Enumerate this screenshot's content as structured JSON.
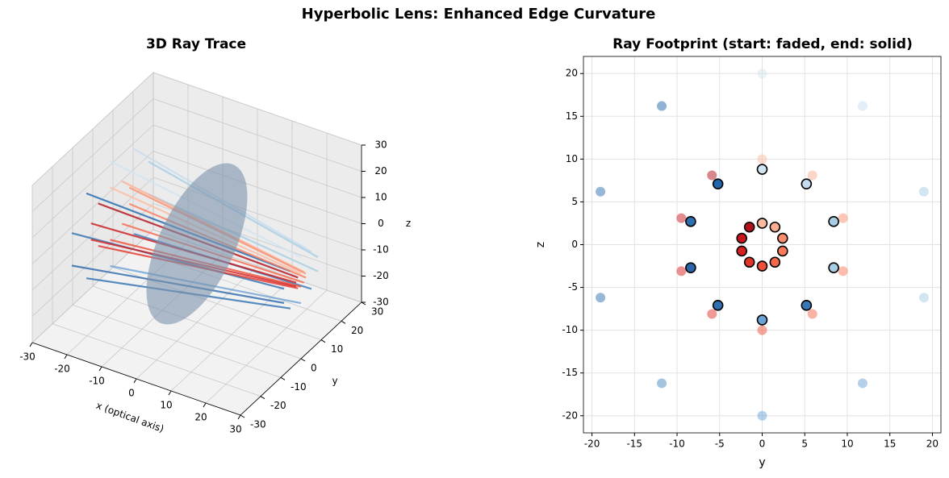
{
  "title": "Hyperbolic Lens: Enhanced Edge Curvature",
  "chart_data": [
    {
      "type": "line3d",
      "title": "3D Ray Trace",
      "x_label": "x (optical axis)",
      "y_label": "y",
      "z_label": "z",
      "xlim": [
        -30,
        30
      ],
      "ylim": [
        -30,
        30
      ],
      "zlim": [
        -30,
        30
      ],
      "xticks": [
        -30,
        -20,
        -10,
        0,
        10,
        20,
        30
      ],
      "yticks": [
        -30,
        -20,
        -10,
        0,
        10,
        20,
        30
      ],
      "zticks": [
        -30,
        -20,
        -10,
        0,
        10,
        20,
        30
      ],
      "x": [
        -25,
        30
      ],
      "lens": {
        "x": 0,
        "radius": 25,
        "color": "#7b93ab"
      },
      "alpha": 0.8,
      "series": [
        {
          "color": "#d1e5f0",
          "y": [
            0,
            0
          ],
          "z": [
            20,
            8.8
          ]
        },
        {
          "color": "#c6dbef",
          "y": [
            11.8,
            5.2
          ],
          "z": [
            16.2,
            7.1
          ]
        },
        {
          "color": "#a6cde3",
          "y": [
            19.0,
            8.4
          ],
          "z": [
            6.2,
            2.7
          ]
        },
        {
          "color": "#a6cde3",
          "y": [
            19.0,
            8.4
          ],
          "z": [
            -6.2,
            -2.7
          ]
        },
        {
          "color": "#3a78b5",
          "y": [
            11.8,
            5.2
          ],
          "z": [
            -16.2,
            -7.1
          ]
        },
        {
          "color": "#6ba3d4",
          "y": [
            0,
            0
          ],
          "z": [
            -20,
            -8.8
          ]
        },
        {
          "color": "#2f6fb0",
          "y": [
            -11.8,
            -5.2
          ],
          "z": [
            -16.2,
            -7.1
          ]
        },
        {
          "color": "#2a67aa",
          "y": [
            -19.0,
            -8.4
          ],
          "z": [
            -6.2,
            -2.7
          ]
        },
        {
          "color": "#2f6fb0",
          "y": [
            -19.0,
            -8.4
          ],
          "z": [
            6.2,
            2.7
          ]
        },
        {
          "color": "#2166ac",
          "y": [
            -11.8,
            -5.2
          ],
          "z": [
            16.2,
            7.1
          ]
        },
        {
          "color": "#fcbba1",
          "y": [
            0,
            0
          ],
          "z": [
            10,
            2.5
          ]
        },
        {
          "color": "#fcae91",
          "y": [
            5.9,
            1.5
          ],
          "z": [
            8.1,
            2.05
          ]
        },
        {
          "color": "#fb8d6d",
          "y": [
            9.5,
            2.4
          ],
          "z": [
            3.1,
            0.75
          ]
        },
        {
          "color": "#fb7a5a",
          "y": [
            9.5,
            2.4
          ],
          "z": [
            -3.1,
            -0.75
          ]
        },
        {
          "color": "#f4684c",
          "y": [
            5.9,
            1.5
          ],
          "z": [
            -8.1,
            -2.05
          ]
        },
        {
          "color": "#ef4f3a",
          "y": [
            0,
            0
          ],
          "z": [
            -10,
            -2.5
          ]
        },
        {
          "color": "#e3342b",
          "y": [
            -5.9,
            -1.5
          ],
          "z": [
            -8.1,
            -2.05
          ]
        },
        {
          "color": "#d52221",
          "y": [
            -9.5,
            -2.4
          ],
          "z": [
            -3.1,
            -0.75
          ]
        },
        {
          "color": "#c9181d",
          "y": [
            -9.5,
            -2.4
          ],
          "z": [
            3.1,
            0.75
          ]
        },
        {
          "color": "#b2121b",
          "y": [
            -5.9,
            -1.5
          ],
          "z": [
            8.1,
            2.05
          ]
        }
      ]
    },
    {
      "type": "scatter",
      "title": "Ray Footprint (start: faded, end: solid)",
      "x_label": "y",
      "y_label": "z",
      "xlim": [
        -21,
        21
      ],
      "ylim": [
        -22,
        22
      ],
      "xticks": [
        -20,
        -15,
        -10,
        -5,
        0,
        5,
        10,
        15,
        20
      ],
      "yticks": [
        -20,
        -15,
        -10,
        -5,
        0,
        5,
        10,
        15,
        20
      ],
      "grid": true,
      "series": [
        {
          "alpha": 0.5,
          "edgecolor": null,
          "x": [
            0,
            11.8,
            19.0,
            19.0,
            11.8,
            0,
            -11.8,
            -19.0,
            -19.0,
            -11.8,
            0,
            5.9,
            9.5,
            9.5,
            5.9,
            0,
            -5.9,
            -9.5,
            -9.5,
            -5.9
          ],
          "values": [
            20,
            16.2,
            6.2,
            -6.2,
            -16.2,
            -20,
            -16.2,
            -6.2,
            6.2,
            16.2,
            10,
            8.1,
            3.1,
            -3.1,
            -8.1,
            -10,
            -8.1,
            -3.1,
            3.1,
            8.1
          ],
          "colors": [
            "#d1e5f0",
            "#c6dbef",
            "#a6cde3",
            "#a6cde3",
            "#6ba3d4",
            "#6ba3d4",
            "#4a87c0",
            "#2f6fb0",
            "#2f6fb0",
            "#2166ac",
            "#fcbba1",
            "#fcae91",
            "#fb8d6d",
            "#fb7a5a",
            "#f4684c",
            "#ef4f3a",
            "#e3342b",
            "#d52221",
            "#c9181d",
            "#b2121b"
          ]
        },
        {
          "alpha": 1,
          "edgecolor": "#000000",
          "x": [
            0,
            5.2,
            8.4,
            8.4,
            5.2,
            0,
            -5.2,
            -8.4,
            -8.4,
            -5.2,
            0,
            1.5,
            2.4,
            2.4,
            1.5,
            0,
            -1.5,
            -2.4,
            -2.4,
            -1.5
          ],
          "values": [
            8.8,
            7.1,
            2.7,
            -2.7,
            -7.1,
            -8.8,
            -7.1,
            -2.7,
            2.7,
            7.1,
            2.5,
            2.05,
            0.75,
            -0.75,
            -2.05,
            -2.5,
            -2.05,
            -0.75,
            0.75,
            2.05
          ],
          "colors": [
            "#d1e5f0",
            "#c6dbef",
            "#a6cde3",
            "#a6cde3",
            "#3a78b5",
            "#6ba3d4",
            "#2f6fb0",
            "#2a67aa",
            "#2f6fb0",
            "#2166ac",
            "#fcbba1",
            "#fcae91",
            "#fb8d6d",
            "#fb7a5a",
            "#f4684c",
            "#ef4f3a",
            "#e3342b",
            "#d52221",
            "#c9181d",
            "#b2121b"
          ]
        }
      ]
    }
  ]
}
